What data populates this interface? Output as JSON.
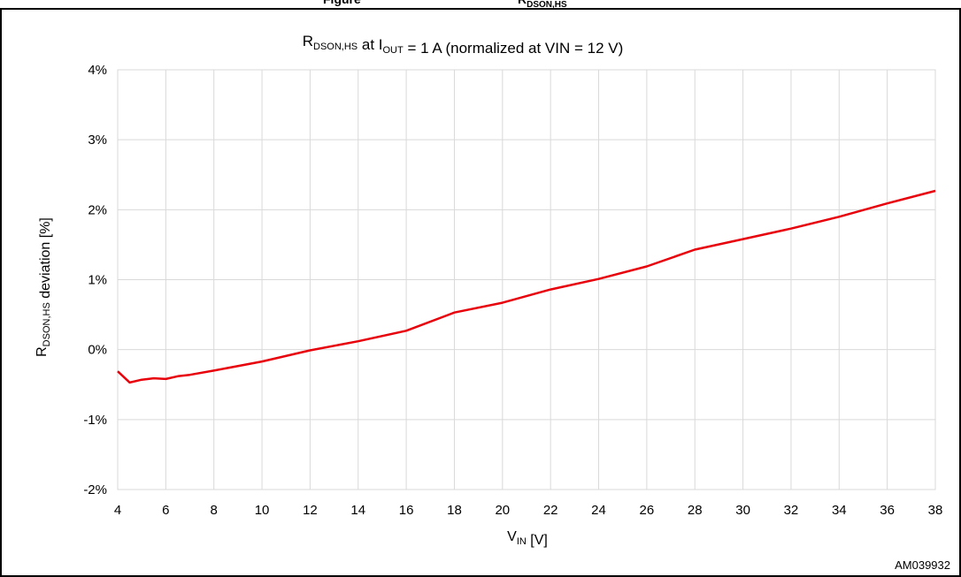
{
  "header_fragment": {
    "left_text": "Figure",
    "right_text": "R",
    "right_sub": "DSON,HS"
  },
  "chart_data": {
    "type": "line",
    "title": {
      "parts": [
        {
          "text": "R",
          "sub": "DSON,HS"
        },
        {
          "text": " at I",
          "sub": "OUT"
        },
        {
          "text": " = 1 A  (normalized at VIN = 12 V)"
        }
      ]
    },
    "xlabel": {
      "text": "V",
      "sub": "IN",
      "suffix": " [V]"
    },
    "ylabel": {
      "text": "R",
      "sub": "DSON,HS",
      "suffix": " deviation [%]"
    },
    "xlim": [
      4,
      38
    ],
    "ylim": [
      -2,
      4
    ],
    "x_ticks": [
      "4",
      "6",
      "8",
      "10",
      "12",
      "14",
      "16",
      "18",
      "20",
      "22",
      "24",
      "26",
      "28",
      "30",
      "32",
      "34",
      "36",
      "38"
    ],
    "y_ticks": [
      "4%",
      "3%",
      "2%",
      "1%",
      "0%",
      "-1%",
      "-2%"
    ],
    "grid": true,
    "series": [
      {
        "color": "#e8000b",
        "x": [
          4,
          4.5,
          5,
          5.5,
          6,
          6.5,
          7,
          8,
          10,
          12,
          14,
          16,
          18,
          20,
          22,
          24,
          26,
          28,
          30,
          32,
          34,
          36,
          38
        ],
        "y": [
          -0.31,
          -0.47,
          -0.43,
          -0.41,
          -0.42,
          -0.38,
          -0.36,
          -0.3,
          -0.17,
          -0.01,
          0.12,
          0.27,
          0.53,
          0.67,
          0.86,
          1.01,
          1.19,
          1.43,
          1.58,
          1.73,
          1.9,
          2.09,
          2.27
        ]
      }
    ],
    "watermark": "AM039932"
  }
}
